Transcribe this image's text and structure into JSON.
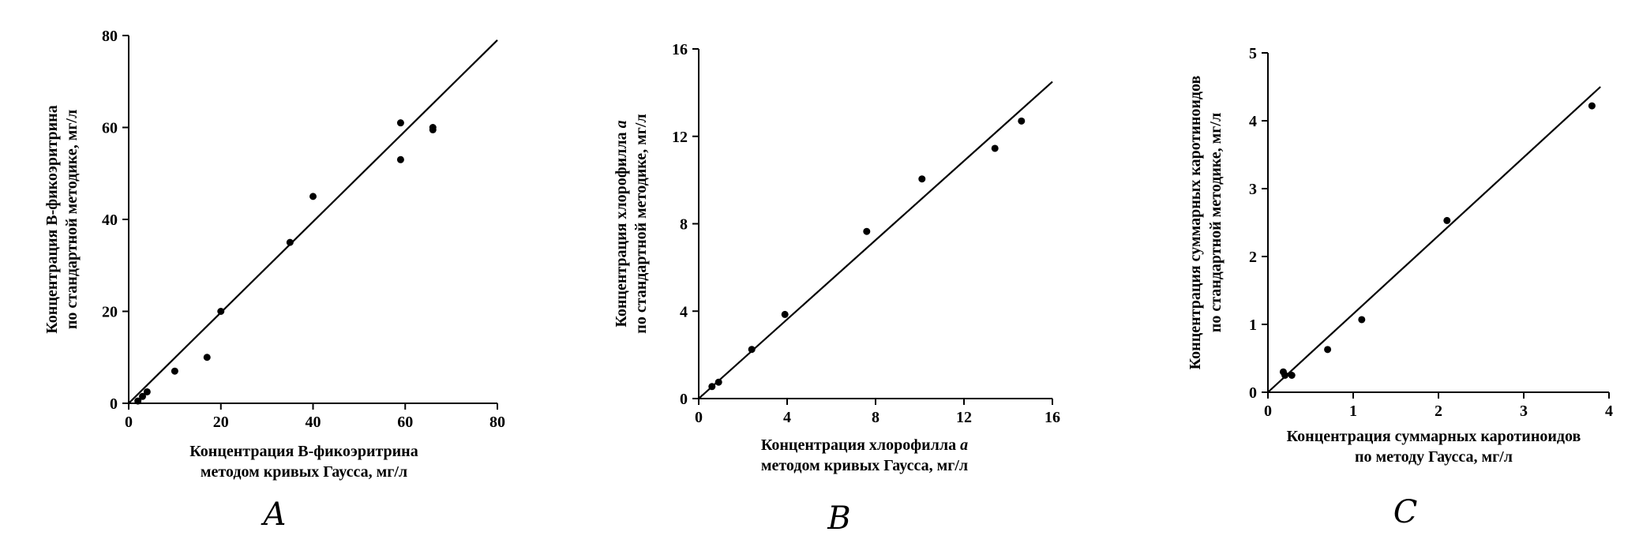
{
  "chart_data": [
    {
      "type": "scatter",
      "panel": "A",
      "xlabel_lines": [
        "Концентрация В-фикоэритрина",
        "методом кривых Гаусса, мг/л"
      ],
      "ylabel_lines": [
        "Концентрация В-фикоэритрина",
        "по стандартной методике, мг/л"
      ],
      "xlim": [
        0,
        80
      ],
      "ylim": [
        0,
        80
      ],
      "xticks": [
        0,
        20,
        40,
        60,
        80
      ],
      "yticks": [
        0,
        20,
        40,
        60,
        80
      ],
      "series": [
        {
          "points": [
            [
              2,
              0.5
            ],
            [
              3,
              1.5
            ],
            [
              4,
              2.5
            ],
            [
              10,
              7
            ],
            [
              17,
              10
            ],
            [
              20,
              20
            ],
            [
              35,
              35
            ],
            [
              40,
              45
            ],
            [
              59,
              61
            ],
            [
              59,
              53
            ],
            [
              66,
              60
            ],
            [
              66,
              59.5
            ]
          ]
        }
      ],
      "fit_line": [
        [
          0,
          0
        ],
        [
          80,
          79
        ]
      ]
    },
    {
      "type": "scatter",
      "panel": "B",
      "xlabel_lines": [
        "Концентрация хлорофилла a",
        "методом кривых Гаусса, мг/л"
      ],
      "ylabel_lines": [
        "Концентрация хлорофилла a",
        "по стандартной методике, мг/л"
      ],
      "xlim": [
        0,
        16
      ],
      "ylim": [
        0,
        16
      ],
      "xticks": [
        0,
        4,
        8,
        12,
        16
      ],
      "yticks": [
        0,
        4,
        8,
        12,
        16
      ],
      "series": [
        {
          "points": [
            [
              0.6,
              0.55
            ],
            [
              0.9,
              0.75
            ],
            [
              2.4,
              2.25
            ],
            [
              3.9,
              3.85
            ],
            [
              7.6,
              7.65
            ],
            [
              10.1,
              10.05
            ],
            [
              13.4,
              11.45
            ],
            [
              14.6,
              12.7
            ]
          ]
        }
      ],
      "fit_line": [
        [
          0,
          0
        ],
        [
          16,
          14.5
        ]
      ]
    },
    {
      "type": "scatter",
      "panel": "C",
      "xlabel_lines": [
        "Концентрация суммарных каротиноидов",
        "по методу Гаусса, мг/л"
      ],
      "ylabel_lines": [
        "Концентрация суммарных каротиноидов",
        "по стандартной методике, мг/л"
      ],
      "xlim": [
        0,
        4
      ],
      "ylim": [
        0,
        5
      ],
      "xticks": [
        0,
        1,
        2,
        3,
        4
      ],
      "yticks": [
        0,
        1,
        2,
        3,
        4,
        5
      ],
      "series": [
        {
          "points": [
            [
              0.18,
              0.3
            ],
            [
              0.2,
              0.25
            ],
            [
              0.28,
              0.25
            ],
            [
              0.7,
              0.63
            ],
            [
              1.1,
              1.07
            ],
            [
              2.1,
              2.53
            ],
            [
              3.8,
              4.22
            ]
          ]
        }
      ],
      "fit_line": [
        [
          0,
          0
        ],
        [
          3.9,
          4.5
        ]
      ]
    }
  ],
  "panel_labels": [
    "A",
    "B",
    "C"
  ]
}
